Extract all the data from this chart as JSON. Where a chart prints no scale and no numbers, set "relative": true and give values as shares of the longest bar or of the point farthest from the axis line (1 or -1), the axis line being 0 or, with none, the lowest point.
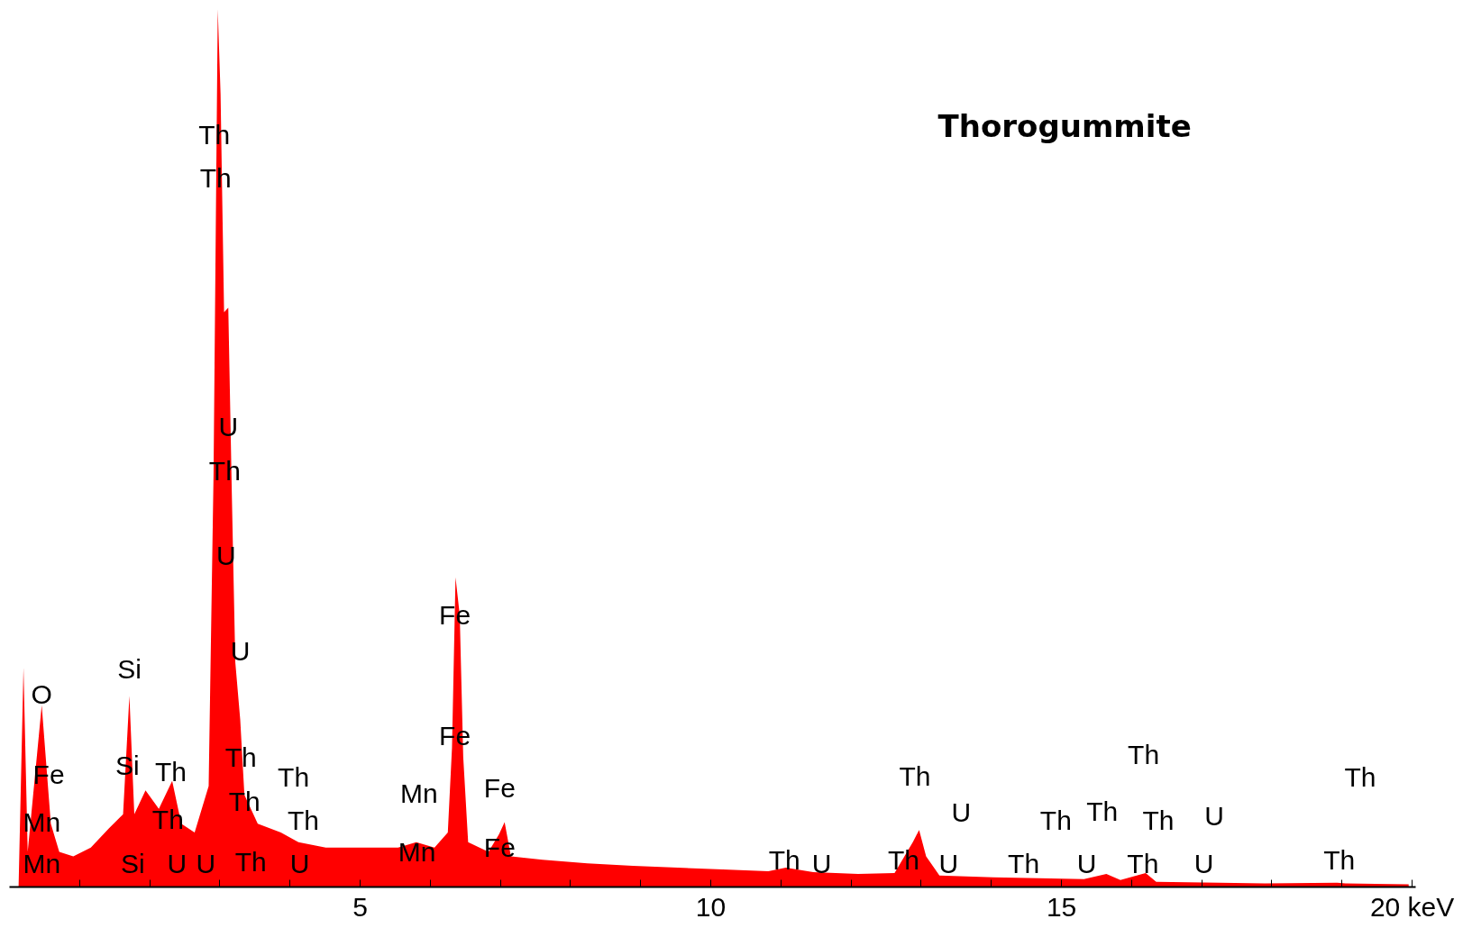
{
  "chart_data": {
    "type": "area",
    "title": "Thorogummite",
    "relative": true,
    "grid": false,
    "series": [
      {
        "color": "#ff0000",
        "x": [
          0.13,
          0.2,
          0.26,
          0.46,
          0.59,
          0.71,
          0.91,
          1.16,
          1.42,
          1.62,
          1.71,
          1.78,
          1.94,
          2.13,
          2.32,
          2.45,
          2.64,
          2.84,
          2.91,
          2.97,
          3.01,
          3.06,
          3.12,
          3.17,
          3.22,
          3.29,
          3.35,
          3.54,
          3.87,
          4.12,
          4.51,
          5.03,
          5.54,
          5.8,
          6.06,
          6.25,
          6.31,
          6.36,
          6.42,
          6.47,
          6.54,
          6.83,
          6.98,
          7.06,
          7.15,
          7.6,
          8.24,
          8.89,
          9.53,
          10.17,
          10.82,
          11.07,
          11.46,
          12.1,
          12.62,
          12.88,
          12.97,
          13.07,
          13.26,
          14.03,
          14.68,
          15.32,
          15.64,
          15.84,
          16.2,
          16.35,
          17.25,
          17.9,
          18.93,
          19.05,
          19.95
        ],
        "values": [
          0,
          0.25,
          0.04,
          0.207,
          0.072,
          0.04,
          0.035,
          0.045,
          0.067,
          0.083,
          0.218,
          0.083,
          0.11,
          0.089,
          0.121,
          0.072,
          0.062,
          0.115,
          0.471,
          1,
          0.903,
          0.655,
          0.66,
          0.45,
          0.256,
          0.191,
          0.105,
          0.072,
          0.062,
          0.051,
          0.045,
          0.045,
          0.045,
          0.051,
          0.045,
          0.062,
          0.159,
          0.353,
          0.31,
          0.148,
          0.051,
          0.04,
          0.06,
          0.074,
          0.035,
          0.031,
          0.027,
          0.024,
          0.022,
          0.02,
          0.018,
          0.022,
          0.017,
          0.015,
          0.016,
          0.051,
          0.065,
          0.035,
          0.013,
          0.011,
          0.01,
          0.009,
          0.015,
          0.008,
          0.016,
          0.006,
          0.005,
          0.004,
          0.005,
          0.004,
          0.003
        ]
      }
    ],
    "xlim": [
      0,
      20.05
    ],
    "xticks": [
      {
        "value": 1,
        "label": null
      },
      {
        "value": 2,
        "label": null
      },
      {
        "value": 3,
        "label": null
      },
      {
        "value": 4,
        "label": null
      },
      5,
      {
        "value": 6,
        "label": null
      },
      {
        "value": 7,
        "label": null
      },
      {
        "value": 8,
        "label": null
      },
      {
        "value": 9,
        "label": null
      },
      10,
      {
        "value": 11,
        "label": null
      },
      {
        "value": 12,
        "label": null
      },
      {
        "value": 13,
        "label": null
      },
      {
        "value": 14,
        "label": null
      },
      15,
      {
        "value": 16,
        "label": null
      },
      {
        "value": 17,
        "label": null
      },
      {
        "value": 18,
        "label": null
      },
      {
        "value": 19,
        "label": null
      },
      {
        "value": 20,
        "label": "20 keV"
      }
    ],
    "annotations": [
      "Th",
      "Th",
      "U",
      "Th",
      "U",
      "U",
      "Si",
      "O",
      "Fe",
      "Fe",
      "Fe",
      "Si",
      "Th",
      "Th",
      "Th",
      "Mn",
      "Fe",
      "Th",
      "Th",
      "Th",
      "Mn",
      "Th",
      "Th",
      "Th",
      "U",
      "Th",
      "Th",
      "Th",
      "U",
      "Mn",
      "Si",
      "U",
      "U",
      "Th",
      "U",
      "Mn",
      "Fe",
      "Th",
      "U",
      "Th",
      "U",
      "Th",
      "U",
      "Th",
      "U",
      "Th"
    ]
  }
}
